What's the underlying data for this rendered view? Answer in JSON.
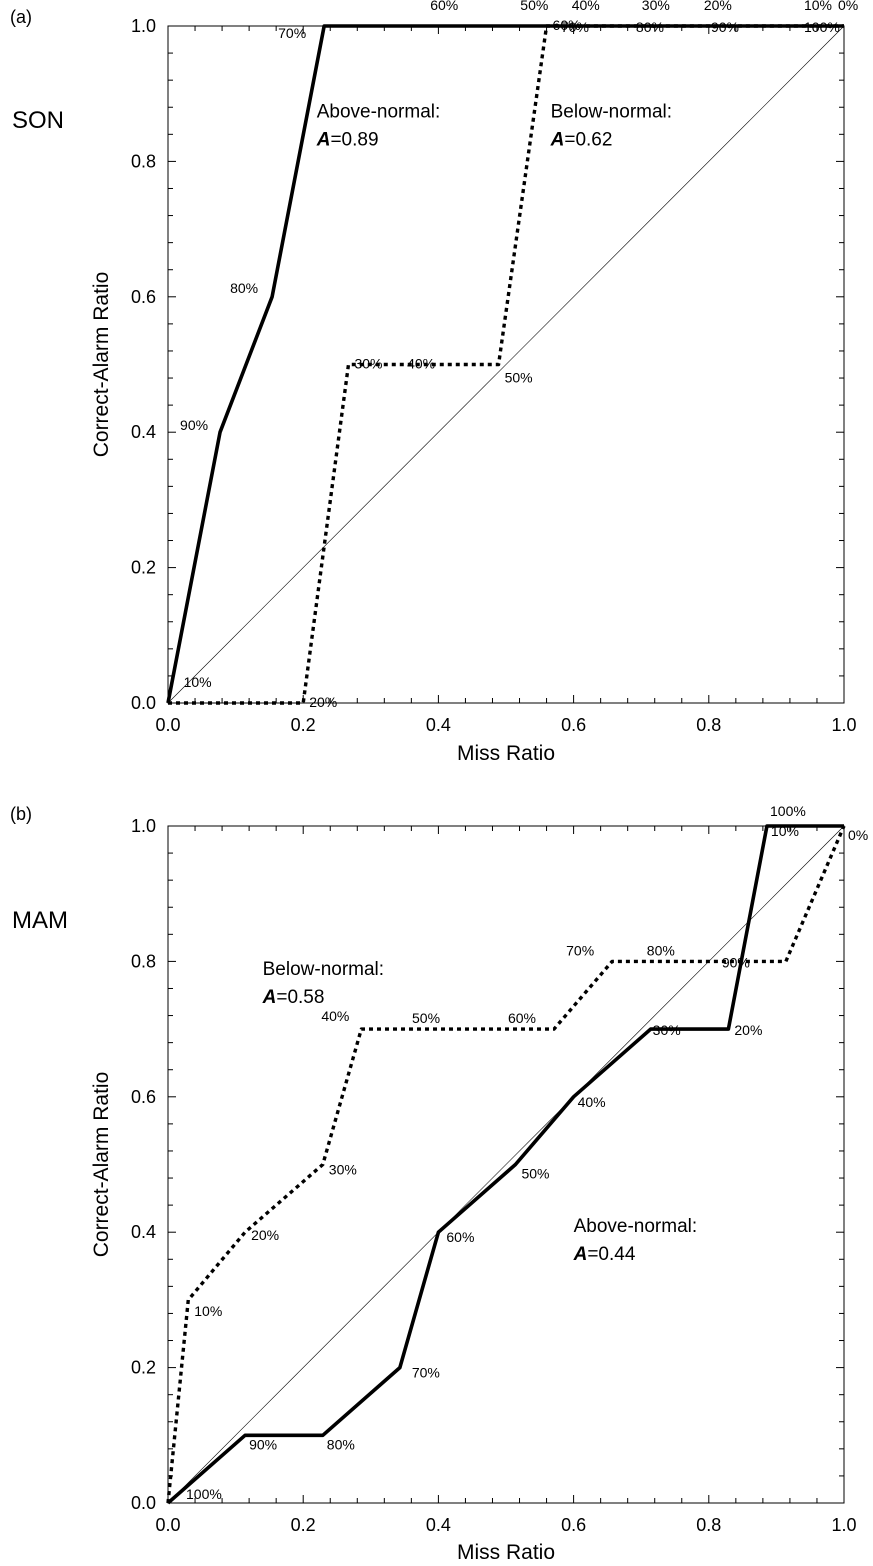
{
  "chart_data": [
    {
      "type": "line",
      "panel_label": "(a)",
      "season": "SON",
      "xlabel": "Miss Ratio",
      "ylabel": "Correct-Alarm Ratio",
      "xlim": [
        0,
        1
      ],
      "ylim": [
        0,
        1
      ],
      "x_ticks": [
        "0.0",
        "0.2",
        "0.4",
        "0.6",
        "0.8",
        "1.0"
      ],
      "y_ticks": [
        "0.0",
        "0.2",
        "0.4",
        "0.6",
        "0.8",
        "1.0"
      ],
      "reference_line": [
        [
          0,
          0
        ],
        [
          1,
          1
        ]
      ],
      "series": [
        {
          "key": "above",
          "style": "solid",
          "points": [
            {
              "x": 0.0,
              "y": 0.0,
              "label": ""
            },
            {
              "x": 0.077,
              "y": 0.4,
              "label": "90%"
            },
            {
              "x": 0.154,
              "y": 0.6,
              "label": "80%"
            },
            {
              "x": 0.231,
              "y": 1.0,
              "label": "70%"
            },
            {
              "x": 0.308,
              "y": 1.0,
              "label": "60%"
            },
            {
              "x": 0.462,
              "y": 1.0,
              "label": "50%"
            },
            {
              "x": 0.538,
              "y": 1.0,
              "label": "40%"
            },
            {
              "x": 0.692,
              "y": 1.0,
              "label": "30%"
            },
            {
              "x": 0.769,
              "y": 1.0,
              "label": "20%"
            },
            {
              "x": 0.923,
              "y": 1.0,
              "label": "10%"
            },
            {
              "x": 1.0,
              "y": 1.0,
              "label": "0%"
            }
          ]
        },
        {
          "key": "below",
          "style": "dotted",
          "points": [
            {
              "x": 0.0,
              "y": 0.0,
              "label": ""
            },
            {
              "x": 0.1,
              "y": 0.0,
              "label": "10%"
            },
            {
              "x": 0.2,
              "y": 0.0,
              "label": "20%"
            },
            {
              "x": 0.267,
              "y": 0.5,
              "label": "30%"
            },
            {
              "x": 0.333,
              "y": 0.5,
              "label": "40%"
            },
            {
              "x": 0.489,
              "y": 0.5,
              "label": "50%"
            },
            {
              "x": 0.56,
              "y": 1.0,
              "label": "60%"
            },
            {
              "x": 0.667,
              "y": 1.0,
              "label": "70%"
            },
            {
              "x": 0.778,
              "y": 1.0,
              "label": "80%"
            },
            {
              "x": 0.889,
              "y": 1.0,
              "label": "90%"
            },
            {
              "x": 1.0,
              "y": 1.0,
              "label": "100%"
            }
          ]
        }
      ],
      "annotations": [
        {
          "series": "above",
          "title": "Above-normal:",
          "stat_symbol": "A",
          "stat_value": "=0.89",
          "at": [
            0.22,
            0.865
          ]
        },
        {
          "series": "below",
          "title": "Below-normal:",
          "stat_symbol": "A",
          "stat_value": "=0.62",
          "at": [
            0.566,
            0.865
          ]
        }
      ]
    },
    {
      "type": "line",
      "panel_label": "(b)",
      "season": "MAM",
      "xlabel": "Miss Ratio",
      "ylabel": "Correct-Alarm Ratio",
      "xlim": [
        0,
        1
      ],
      "ylim": [
        0,
        1
      ],
      "x_ticks": [
        "0.0",
        "0.2",
        "0.4",
        "0.6",
        "0.8",
        "1.0"
      ],
      "y_ticks": [
        "0.0",
        "0.2",
        "0.4",
        "0.6",
        "0.8",
        "1.0"
      ],
      "reference_line": [
        [
          0,
          0
        ],
        [
          1,
          1
        ]
      ],
      "series": [
        {
          "key": "above",
          "style": "solid",
          "points": [
            {
              "x": 0.0,
              "y": 0.0,
              "label": "100%"
            },
            {
              "x": 0.114,
              "y": 0.1,
              "label": "90%"
            },
            {
              "x": 0.229,
              "y": 0.1,
              "label": "80%"
            },
            {
              "x": 0.343,
              "y": 0.2,
              "label": "70%"
            },
            {
              "x": 0.4,
              "y": 0.4,
              "label": "60%"
            },
            {
              "x": 0.514,
              "y": 0.5,
              "label": "50%"
            },
            {
              "x": 0.6,
              "y": 0.6,
              "label": "40%"
            },
            {
              "x": 0.714,
              "y": 0.7,
              "label": "30%"
            },
            {
              "x": 0.829,
              "y": 0.7,
              "label": "20%"
            },
            {
              "x": 0.886,
              "y": 1.0,
              "label": "10%"
            },
            {
              "x": 1.0,
              "y": 1.0,
              "label": "0%"
            }
          ]
        },
        {
          "key": "below",
          "style": "dotted",
          "points": [
            {
              "x": 0.0,
              "y": 0.0,
              "label": ""
            },
            {
              "x": 0.03,
              "y": 0.3,
              "label": "10%"
            },
            {
              "x": 0.114,
              "y": 0.4,
              "label": "20%"
            },
            {
              "x": 0.229,
              "y": 0.5,
              "label": "30%"
            },
            {
              "x": 0.286,
              "y": 0.7,
              "label": "40%"
            },
            {
              "x": 0.429,
              "y": 0.7,
              "label": "50%"
            },
            {
              "x": 0.571,
              "y": 0.7,
              "label": "60%"
            },
            {
              "x": 0.657,
              "y": 0.8,
              "label": "70%"
            },
            {
              "x": 0.8,
              "y": 0.8,
              "label": "80%"
            },
            {
              "x": 0.914,
              "y": 0.8,
              "label": "90%"
            },
            {
              "x": 1.0,
              "y": 1.0,
              "label": "100%"
            }
          ]
        }
      ],
      "annotations": [
        {
          "series": "below",
          "title": "Below-normal:",
          "stat_symbol": "A",
          "stat_value": "=0.58",
          "at": [
            0.14,
            0.78
          ]
        },
        {
          "series": "above",
          "title": "Above-normal:",
          "stat_symbol": "A",
          "stat_value": "=0.44",
          "at": [
            0.6,
            0.4
          ]
        }
      ]
    }
  ]
}
